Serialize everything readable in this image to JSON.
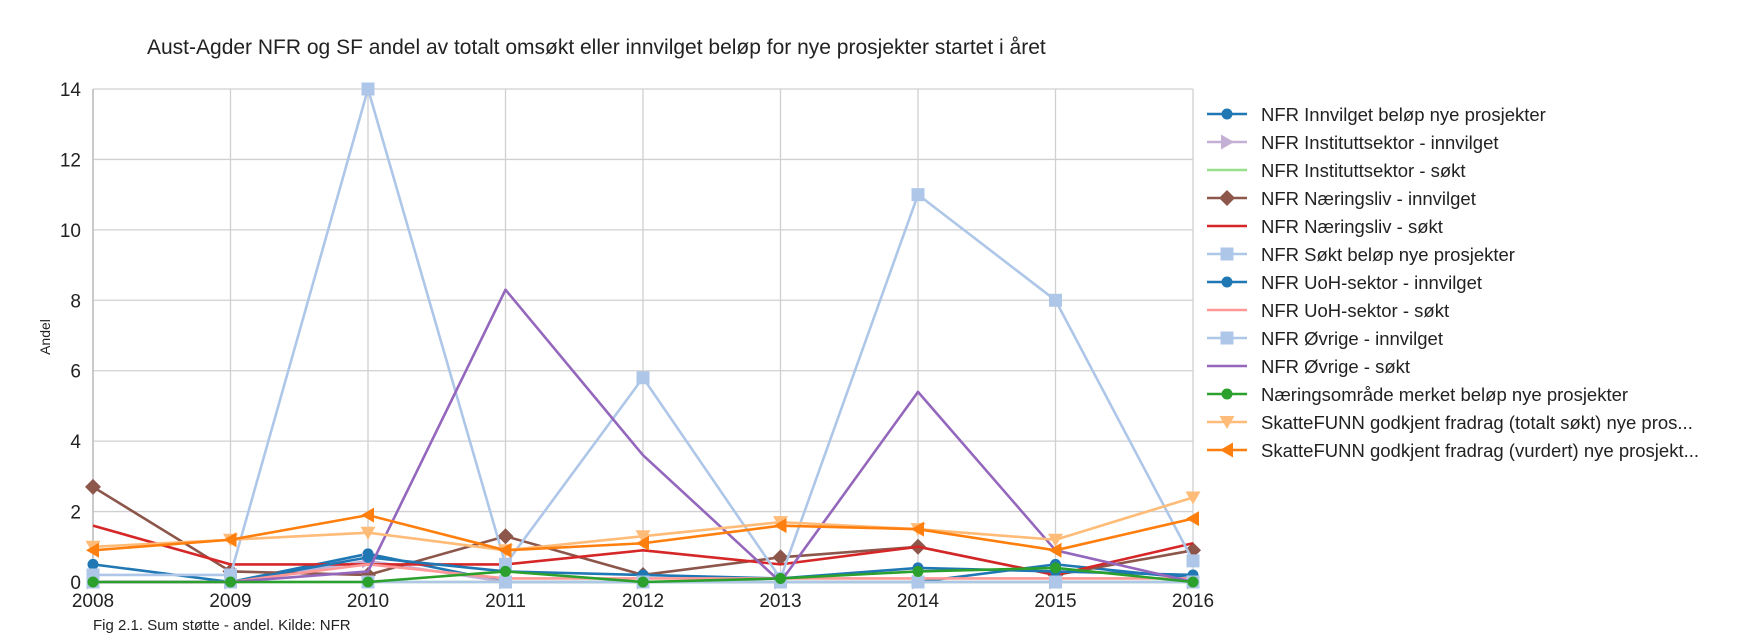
{
  "chart_data": {
    "type": "line",
    "title": "Aust-Agder NFR og SF andel av totalt omsøkt eller innvilget beløp for nye prosjekter startet i året",
    "xlabel": "",
    "ylabel": "Andel",
    "caption": "Fig 2.1. Sum støtte - andel. Kilde: NFR",
    "x": [
      "2008",
      "2009",
      "2010",
      "2011",
      "2012",
      "2013",
      "2014",
      "2015",
      "2016"
    ],
    "ylim": [
      0,
      14
    ],
    "yticks": [
      "0",
      "2",
      "4",
      "6",
      "8",
      "10",
      "12",
      "14"
    ],
    "grid": true,
    "legend_position": "right",
    "series": [
      {
        "name": "NFR Innvilget beløp nye prosjekter",
        "color": "#1f77b4",
        "marker": "circle",
        "values": [
          0.5,
          0.0,
          0.8,
          0.0,
          0.0,
          0.0,
          0.0,
          0.5,
          0.1
        ]
      },
      {
        "name": "NFR Instituttsektor - innvilget",
        "color": "#c5b0d5",
        "marker": "triangle-right",
        "values": [
          0.0,
          0.0,
          0.6,
          0.0,
          0.0,
          0.0,
          0.0,
          0.0,
          0.0
        ]
      },
      {
        "name": "NFR Instituttsektor - søkt",
        "color": "#98df8a",
        "marker": "none",
        "values": [
          0.0,
          0.0,
          0.0,
          0.0,
          0.0,
          0.0,
          0.0,
          0.0,
          0.0
        ]
      },
      {
        "name": "NFR Næringsliv - innvilget",
        "color": "#8c564b",
        "marker": "diamond",
        "values": [
          2.7,
          0.3,
          0.2,
          1.3,
          0.2,
          0.7,
          1.0,
          0.2,
          0.9
        ]
      },
      {
        "name": "NFR Næringsliv - søkt",
        "color": "#d62728",
        "marker": "none",
        "values": [
          1.6,
          0.5,
          0.5,
          0.5,
          0.9,
          0.5,
          1.0,
          0.2,
          1.1
        ]
      },
      {
        "name": "NFR Søkt beløp nye prosjekter",
        "color": "#aec7e8",
        "marker": "square",
        "values": [
          0.2,
          0.2,
          14.0,
          0.5,
          5.8,
          0.1,
          11.0,
          8.0,
          0.6
        ]
      },
      {
        "name": "NFR UoH-sektor - innvilget",
        "color": "#1f77b4",
        "marker": "circle",
        "values": [
          0.0,
          0.0,
          0.7,
          0.3,
          0.2,
          0.1,
          0.4,
          0.3,
          0.2
        ]
      },
      {
        "name": "NFR UoH-sektor - søkt",
        "color": "#ff9896",
        "marker": "none",
        "values": [
          0.0,
          0.0,
          0.5,
          0.1,
          0.1,
          0.1,
          0.1,
          0.1,
          0.1
        ]
      },
      {
        "name": "NFR Øvrige - innvilget",
        "color": "#aec7e8",
        "marker": "square",
        "values": [
          0.0,
          0.0,
          0.0,
          0.0,
          0.0,
          0.0,
          0.0,
          0.0,
          0.0
        ]
      },
      {
        "name": "NFR Øvrige - søkt",
        "color": "#9467bd",
        "marker": "none",
        "values": [
          0.0,
          0.0,
          0.3,
          8.3,
          3.6,
          0.0,
          5.4,
          0.9,
          0.0
        ]
      },
      {
        "name": "Næringsområde merket beløp nye prosjekter",
        "color": "#2ca02c",
        "marker": "circle",
        "values": [
          0.0,
          0.0,
          0.0,
          0.3,
          0.0,
          0.1,
          0.3,
          0.4,
          0.0
        ]
      },
      {
        "name": "SkatteFUNN godkjent fradrag (totalt søkt) nye pros...",
        "color": "#ffbb78",
        "marker": "triangle-down",
        "values": [
          1.0,
          1.2,
          1.4,
          0.9,
          1.3,
          1.7,
          1.5,
          1.2,
          2.4
        ]
      },
      {
        "name": "SkatteFUNN godkjent fradrag (vurdert) nye prosjekt...",
        "color": "#ff7f0e",
        "marker": "triangle-left",
        "values": [
          0.9,
          1.2,
          1.9,
          0.9,
          1.1,
          1.6,
          1.5,
          0.9,
          1.8
        ]
      }
    ]
  }
}
